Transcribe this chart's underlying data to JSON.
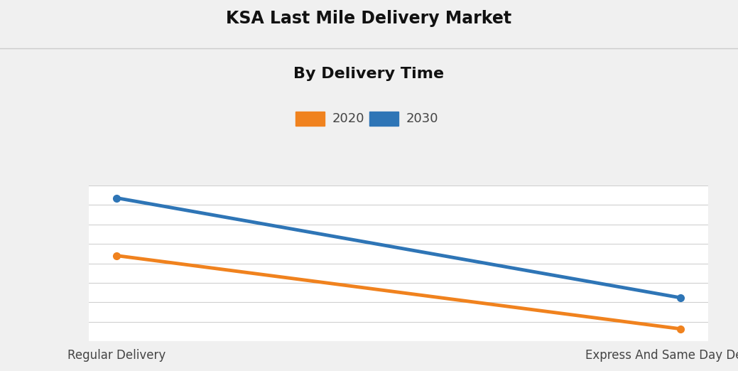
{
  "title": "KSA Last Mile Delivery Market",
  "subtitle": "By Delivery Time",
  "categories": [
    "Regular Delivery",
    "Express And Same Day Delivery"
  ],
  "series": [
    {
      "label": "2020",
      "color": "#F0821E",
      "values": [
        55,
        8
      ]
    },
    {
      "label": "2030",
      "color": "#2E75B6",
      "values": [
        92,
        28
      ]
    }
  ],
  "ylim": [
    0,
    100
  ],
  "fig_background_color": "#f0f0f0",
  "plot_background_color": "#ffffff",
  "title_fontsize": 17,
  "subtitle_fontsize": 16,
  "legend_fontsize": 13,
  "tick_fontsize": 12,
  "line_width": 3.5,
  "grid_color": "#d0d0d0",
  "n_gridlines": 9
}
